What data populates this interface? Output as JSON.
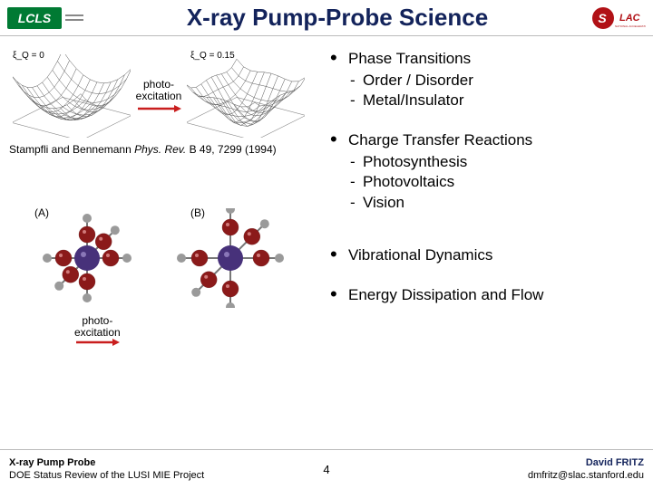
{
  "header": {
    "lcls_text": "LCLS",
    "title": "X-ray Pump-Probe Science",
    "slac_logo_colors": {
      "s": "#b11116",
      "rest": "#ffffff",
      "bg": "#2a2a2a",
      "accent": "#b11116"
    }
  },
  "figures": {
    "top": {
      "left_label": "ξ_Q = 0",
      "right_label": "ξ_Q = 0.15",
      "photo_label_1": "photo-",
      "photo_label_2": "excitation",
      "citation_pre": "Stampfli and Bennemann ",
      "citation_journal": "Phys. Rev.",
      "citation_post": " B 49, 7299 (1994)",
      "surface": {
        "grid_n": 11,
        "depth_w": 120,
        "depth_h": 82,
        "stroke": "#555555",
        "fill": "#f3f3f3"
      }
    },
    "mol": {
      "tag_a": "(A)",
      "tag_b": "(B)",
      "photo_label_1": "photo-",
      "photo_label_2": "excitation",
      "atoms": {
        "center_color": "#47317a",
        "ligand_color": "#8b1a1a",
        "arm_color": "#9a9a9a",
        "radius_center": 14,
        "radius_ligand": 9,
        "radius_arm": 5
      }
    }
  },
  "bullets": {
    "items": [
      {
        "label": "Phase Transitions",
        "sub": [
          "Order / Disorder",
          "Metal/Insulator"
        ]
      },
      {
        "label": "Charge Transfer Reactions",
        "sub": [
          "Photosynthesis",
          "Photovoltaics",
          "Vision"
        ]
      },
      {
        "label": "Vibrational Dynamics",
        "sub": []
      },
      {
        "label": "Energy Dissipation and Flow",
        "sub": []
      }
    ]
  },
  "footer": {
    "left_1": "X-ray Pump Probe",
    "left_2": "DOE Status Review of the LUSI MIE Project",
    "page": "4",
    "right_1": "David FRITZ",
    "right_2": "dmfritz@slac.stanford.edu"
  },
  "colors": {
    "title": "#13235b",
    "rule": "#bbbbbb",
    "arrow": "#c91e1e"
  }
}
